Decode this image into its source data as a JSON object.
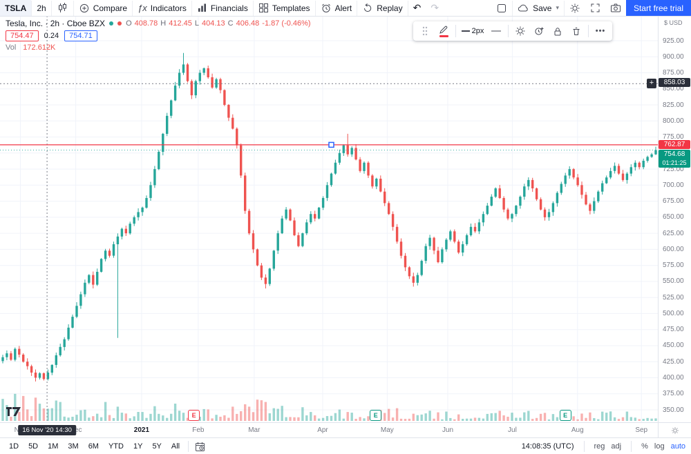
{
  "toolbar": {
    "symbol": "TSLA",
    "interval": "2h",
    "compare_label": "Compare",
    "indicators_label": "Indicators",
    "financials_label": "Financials",
    "templates_label": "Templates",
    "alert_label": "Alert",
    "replay_label": "Replay",
    "undo_glyph": "↶",
    "redo_glyph": "↷",
    "save_label": "Save",
    "trial_label": "Start free trial"
  },
  "legend": {
    "title": "Tesla, Inc. · 2h · Cboe BZX",
    "ohlc": {
      "o_l": "O",
      "o": "408.78",
      "h_l": "H",
      "h": "412.45",
      "l_l": "L",
      "l": "404.13",
      "c_l": "C",
      "c": "406.48",
      "chg": "-1.87 (-0.46%)"
    },
    "bid": "754.47",
    "spread": "0.24",
    "ask": "754.71",
    "vol_label": "Vol",
    "vol_value": "172.612K"
  },
  "drawing_toolbar": {
    "weight_label": "2px",
    "more_glyph": "•••"
  },
  "price_axis": {
    "currency": "$ USD",
    "crosshair_badge": "858.03",
    "line_badge": "762.87",
    "last_badge": "754.68",
    "countdown": "01:21:25"
  },
  "time_axis": {
    "months": [
      {
        "label": "Nov",
        "fx": 0.031
      },
      {
        "label": "Dec",
        "fx": 0.115
      },
      {
        "label": "2021",
        "fx": 0.215,
        "major": true
      },
      {
        "label": "Feb",
        "fx": 0.301
      },
      {
        "label": "Mar",
        "fx": 0.386
      },
      {
        "label": "Apr",
        "fx": 0.49
      },
      {
        "label": "May",
        "fx": 0.588
      },
      {
        "label": "Jun",
        "fx": 0.68
      },
      {
        "label": "Jul",
        "fx": 0.778
      },
      {
        "label": "Aug",
        "fx": 0.877
      },
      {
        "label": "Sep",
        "fx": 0.974
      }
    ],
    "crosshair_badge": "16 Nov '20  14:30",
    "events": [
      {
        "label": "E",
        "fx": 0.294,
        "color": "#f23645"
      },
      {
        "label": "E",
        "fx": 0.57,
        "color": "#089981"
      },
      {
        "label": "E",
        "fx": 0.858,
        "color": "#089981"
      }
    ]
  },
  "bottom_bar": {
    "ranges": [
      "1D",
      "5D",
      "1M",
      "3M",
      "6M",
      "YTD",
      "1Y",
      "5Y",
      "All"
    ],
    "clock": "14:08:35",
    "tz": "(UTC)",
    "reg": "reg",
    "adj": "adj",
    "pct": "%",
    "log": "log",
    "auto": "auto"
  },
  "chart_data": {
    "type": "candlestick",
    "symbol": "TSLA",
    "title": "Tesla, Inc.",
    "interval": "2h",
    "exchange": "Cboe BZX",
    "approximate": true,
    "current_ohlc": {
      "open": 408.78,
      "high": 412.45,
      "low": 404.13,
      "close": 406.48,
      "change": -1.87,
      "change_pct": -0.46
    },
    "last_price": 754.68,
    "alert_line_price": 762.87,
    "crosshair": {
      "price": 858.03,
      "time": "16 Nov '20 14:30",
      "fx": 0.0715
    },
    "volume_current": "172.612K",
    "y_axis": {
      "min": 350,
      "max": 925,
      "step": 25,
      "unit": "USD"
    },
    "x_range": [
      "Nov 2020",
      "Sep 2021"
    ],
    "closes": [
      432,
      438,
      428,
      445,
      436,
      425,
      418,
      408,
      400,
      407,
      398,
      408,
      420,
      435,
      448,
      460,
      478,
      495,
      512,
      530,
      548,
      560,
      545,
      565,
      585,
      598,
      590,
      608,
      620,
      632,
      625,
      640,
      650,
      658,
      665,
      680,
      700,
      725,
      752,
      780,
      808,
      832,
      855,
      875,
      888,
      862,
      840,
      862,
      875,
      882,
      868,
      852,
      865,
      848,
      825,
      805,
      788,
      762,
      715,
      660,
      625,
      600,
      575,
      556,
      546,
      570,
      598,
      625,
      648,
      662,
      645,
      622,
      605,
      625,
      642,
      655,
      648,
      665,
      680,
      700,
      718,
      735,
      750,
      762,
      748,
      758,
      740,
      722,
      735,
      715,
      698,
      710,
      690,
      672,
      655,
      635,
      612,
      590,
      572,
      558,
      548,
      560,
      582,
      605,
      618,
      598,
      580,
      600,
      615,
      628,
      612,
      595,
      608,
      622,
      635,
      628,
      642,
      655,
      668,
      682,
      695,
      680,
      662,
      648,
      655,
      668,
      682,
      698,
      708,
      695,
      678,
      662,
      650,
      658,
      672,
      688,
      702,
      715,
      725,
      712,
      700,
      685,
      670,
      660,
      675,
      690,
      703,
      712,
      722,
      730,
      718,
      708,
      718,
      728,
      735,
      728,
      738,
      744,
      748,
      754.68
    ],
    "wick_events": [
      {
        "i": 28,
        "low": 462
      },
      {
        "i": 44,
        "high": 906
      },
      {
        "i": 64,
        "low": 539
      },
      {
        "i": 84,
        "high": 780
      },
      {
        "i": 100,
        "low": 542
      }
    ],
    "volume_envelope": [
      [
        0,
        0.8
      ],
      [
        0.05,
        1.0
      ],
      [
        0.1,
        0.7
      ],
      [
        0.2,
        0.55
      ],
      [
        0.27,
        0.6
      ],
      [
        0.33,
        0.5
      ],
      [
        0.37,
        0.9
      ],
      [
        0.42,
        0.65
      ],
      [
        0.5,
        0.45
      ],
      [
        0.55,
        0.4
      ],
      [
        0.6,
        0.45
      ],
      [
        0.65,
        0.35
      ],
      [
        0.72,
        0.3
      ],
      [
        0.78,
        0.35
      ],
      [
        0.85,
        0.3
      ],
      [
        0.92,
        0.3
      ],
      [
        1,
        0.35
      ]
    ],
    "seed": 42,
    "colors": {
      "up": "#26a69a",
      "down": "#ef5350",
      "grid": "#f0f3fa",
      "alert_line": "#f23645",
      "crosshair": "#787b86",
      "accent": "#2962ff"
    }
  }
}
